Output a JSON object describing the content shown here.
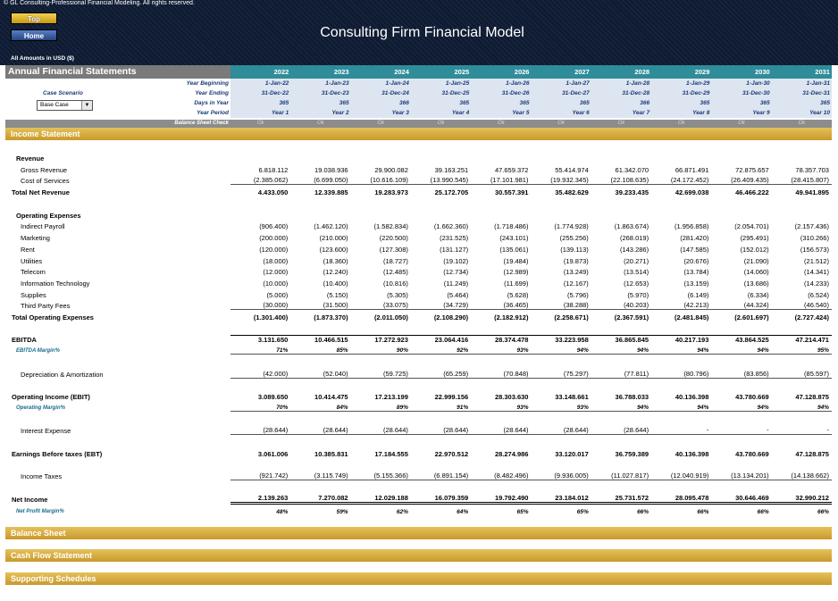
{
  "header": {
    "copyright": "© GL Consulting-Professional Financial Modeling. All rights reserved.",
    "top_button": "Top",
    "home_button": "Home",
    "title": "Consulting Firm Financial Model",
    "amounts_note": "All Amounts in  USD ($)"
  },
  "statements": {
    "title": "Annual Financial Statements",
    "years": [
      "2022",
      "2023",
      "2024",
      "2025",
      "2026",
      "2027",
      "2028",
      "2029",
      "2030",
      "2031"
    ],
    "meta": [
      {
        "label": "Year Beginning",
        "values": [
          "1-Jan-22",
          "1-Jan-23",
          "1-Jan-24",
          "1-Jan-25",
          "1-Jan-26",
          "1-Jan-27",
          "1-Jan-28",
          "1-Jan-29",
          "1-Jan-30",
          "1-Jan-31"
        ]
      },
      {
        "label": "Year Ending",
        "values": [
          "31-Dec-22",
          "31-Dec-23",
          "31-Dec-24",
          "31-Dec-25",
          "31-Dec-26",
          "31-Dec-27",
          "31-Dec-28",
          "31-Dec-29",
          "31-Dec-30",
          "31-Dec-31"
        ]
      },
      {
        "label": "Days in Year",
        "values": [
          "365",
          "365",
          "366",
          "365",
          "365",
          "365",
          "366",
          "365",
          "365",
          "365"
        ]
      },
      {
        "label": "Year Period",
        "values": [
          "Year 1",
          "Year 2",
          "Year 3",
          "Year 4",
          "Year 5",
          "Year 6",
          "Year 7",
          "Year 8",
          "Year 9",
          "Year 10"
        ]
      }
    ],
    "case_scenario_label": "Case Scenario",
    "case_scenario_value": "Base Case",
    "balance_check_label": "Balance Sheet Check",
    "balance_check_values": [
      "Ok",
      "Ok",
      "Ok",
      "Ok",
      "Ok",
      "Ok",
      "Ok",
      "Ok",
      "Ok",
      "Ok"
    ]
  },
  "sections": {
    "income": "Income Statement",
    "balance": "Balance Sheet",
    "cashflow": "Cash Flow Statement",
    "supporting": "Supporting Schedules"
  },
  "income": {
    "revenue_head": "Revenue",
    "gross_revenue": {
      "label": "Gross Revenue",
      "values": [
        "6.818.112",
        "19.038.936",
        "29.900.082",
        "39.163.251",
        "47.659.372",
        "55.414.974",
        "61.342.070",
        "66.871.491",
        "72.875.657",
        "78.357.703"
      ]
    },
    "cost_of_services": {
      "label": "Cost of Services",
      "values": [
        "(2.385.062)",
        "(6.699.050)",
        "(10.616.109)",
        "(13.990.545)",
        "(17.101.981)",
        "(19.932.345)",
        "(22.108.635)",
        "(24.172.452)",
        "(26.409.435)",
        "(28.415.807)"
      ]
    },
    "total_net_revenue": {
      "label": "Total Net Revenue",
      "values": [
        "4.433.050",
        "12.339.885",
        "19.283.973",
        "25.172.705",
        "30.557.391",
        "35.482.629",
        "39.233.435",
        "42.699.038",
        "46.466.222",
        "49.941.895"
      ]
    },
    "opex_head": "Operating Expenses",
    "opex": [
      {
        "label": "Indirect Payroll",
        "values": [
          "(906.400)",
          "(1.462.120)",
          "(1.582.834)",
          "(1.662.360)",
          "(1.718.486)",
          "(1.774.928)",
          "(1.863.674)",
          "(1.956.858)",
          "(2.054.701)",
          "(2.157.436)"
        ]
      },
      {
        "label": "Marketing",
        "values": [
          "(200.000)",
          "(210.000)",
          "(220.500)",
          "(231.525)",
          "(243.101)",
          "(255.256)",
          "(268.019)",
          "(281.420)",
          "(295.491)",
          "(310.266)"
        ]
      },
      {
        "label": "Rent",
        "values": [
          "(120.000)",
          "(123.600)",
          "(127.308)",
          "(131.127)",
          "(135.061)",
          "(139.113)",
          "(143.286)",
          "(147.585)",
          "(152.012)",
          "(156.573)"
        ]
      },
      {
        "label": "Utilities",
        "values": [
          "(18.000)",
          "(18.360)",
          "(18.727)",
          "(19.102)",
          "(19.484)",
          "(19.873)",
          "(20.271)",
          "(20.676)",
          "(21.090)",
          "(21.512)"
        ]
      },
      {
        "label": "Telecom",
        "values": [
          "(12.000)",
          "(12.240)",
          "(12.485)",
          "(12.734)",
          "(12.989)",
          "(13.249)",
          "(13.514)",
          "(13.784)",
          "(14.060)",
          "(14.341)"
        ]
      },
      {
        "label": "Information Technology",
        "values": [
          "(10.000)",
          "(10.400)",
          "(10.816)",
          "(11.249)",
          "(11.699)",
          "(12.167)",
          "(12.653)",
          "(13.159)",
          "(13.686)",
          "(14.233)"
        ]
      },
      {
        "label": "Supplies",
        "values": [
          "(5.000)",
          "(5.150)",
          "(5.305)",
          "(5.464)",
          "(5.628)",
          "(5.796)",
          "(5.970)",
          "(6.149)",
          "(6.334)",
          "(6.524)"
        ]
      },
      {
        "label": "Third Party Fees",
        "values": [
          "(30.000)",
          "(31.500)",
          "(33.075)",
          "(34.729)",
          "(36.465)",
          "(38.288)",
          "(40.203)",
          "(42.213)",
          "(44.324)",
          "(46.540)"
        ]
      }
    ],
    "total_opex": {
      "label": "Total Operating Expenses",
      "values": [
        "(1.301.400)",
        "(1.873.370)",
        "(2.011.050)",
        "(2.108.290)",
        "(2.182.912)",
        "(2.258.671)",
        "(2.367.591)",
        "(2.481.845)",
        "(2.601.697)",
        "(2.727.424)"
      ]
    },
    "ebitda": {
      "label": "EBITDA",
      "values": [
        "3.131.650",
        "10.466.515",
        "17.272.923",
        "23.064.416",
        "28.374.478",
        "33.223.958",
        "36.865.845",
        "40.217.193",
        "43.864.525",
        "47.214.471"
      ]
    },
    "ebitda_margin": {
      "label": "EBITDA Margin%",
      "values": [
        "71%",
        "85%",
        "90%",
        "92%",
        "93%",
        "94%",
        "94%",
        "94%",
        "94%",
        "95%"
      ]
    },
    "depreciation": {
      "label": "Depreciation & Amortization",
      "values": [
        "(42.000)",
        "(52.040)",
        "(59.725)",
        "(65.259)",
        "(70.848)",
        "(75.297)",
        "(77.811)",
        "(80.796)",
        "(83.856)",
        "(85.597)"
      ]
    },
    "ebit": {
      "label": "Operating Income (EBIT)",
      "values": [
        "3.089.650",
        "10.414.475",
        "17.213.199",
        "22.999.156",
        "28.303.630",
        "33.148.661",
        "36.788.033",
        "40.136.398",
        "43.780.669",
        "47.128.875"
      ]
    },
    "operating_margin": {
      "label": "Operating Margin%",
      "values": [
        "70%",
        "84%",
        "89%",
        "91%",
        "93%",
        "93%",
        "94%",
        "94%",
        "94%",
        "94%"
      ]
    },
    "interest": {
      "label": "Interest Expense",
      "values": [
        "(28.644)",
        "(28.644)",
        "(28.644)",
        "(28.644)",
        "(28.644)",
        "(28.644)",
        "(28.644)",
        "-",
        "-",
        "-"
      ]
    },
    "ebt": {
      "label": "Earnings Before taxes (EBT)",
      "values": [
        "3.061.006",
        "10.385.831",
        "17.184.555",
        "22.970.512",
        "28.274.986",
        "33.120.017",
        "36.759.389",
        "40.136.398",
        "43.780.669",
        "47.128.875"
      ]
    },
    "taxes": {
      "label": "Income Taxes",
      "values": [
        "(921.742)",
        "(3.115.749)",
        "(5.155.366)",
        "(6.891.154)",
        "(8.482.496)",
        "(9.936.005)",
        "(11.027.817)",
        "(12.040.919)",
        "(13.134.201)",
        "(14.138.662)"
      ]
    },
    "net_income": {
      "label": "Net Income",
      "values": [
        "2.139.263",
        "7.270.082",
        "12.029.188",
        "16.079.359",
        "19.792.490",
        "23.184.012",
        "25.731.572",
        "28.095.478",
        "30.646.469",
        "32.990.212"
      ]
    },
    "net_margin": {
      "label": "Net Profit Margin%",
      "values": [
        "48%",
        "59%",
        "62%",
        "64%",
        "65%",
        "65%",
        "66%",
        "66%",
        "66%",
        "66%"
      ]
    }
  }
}
